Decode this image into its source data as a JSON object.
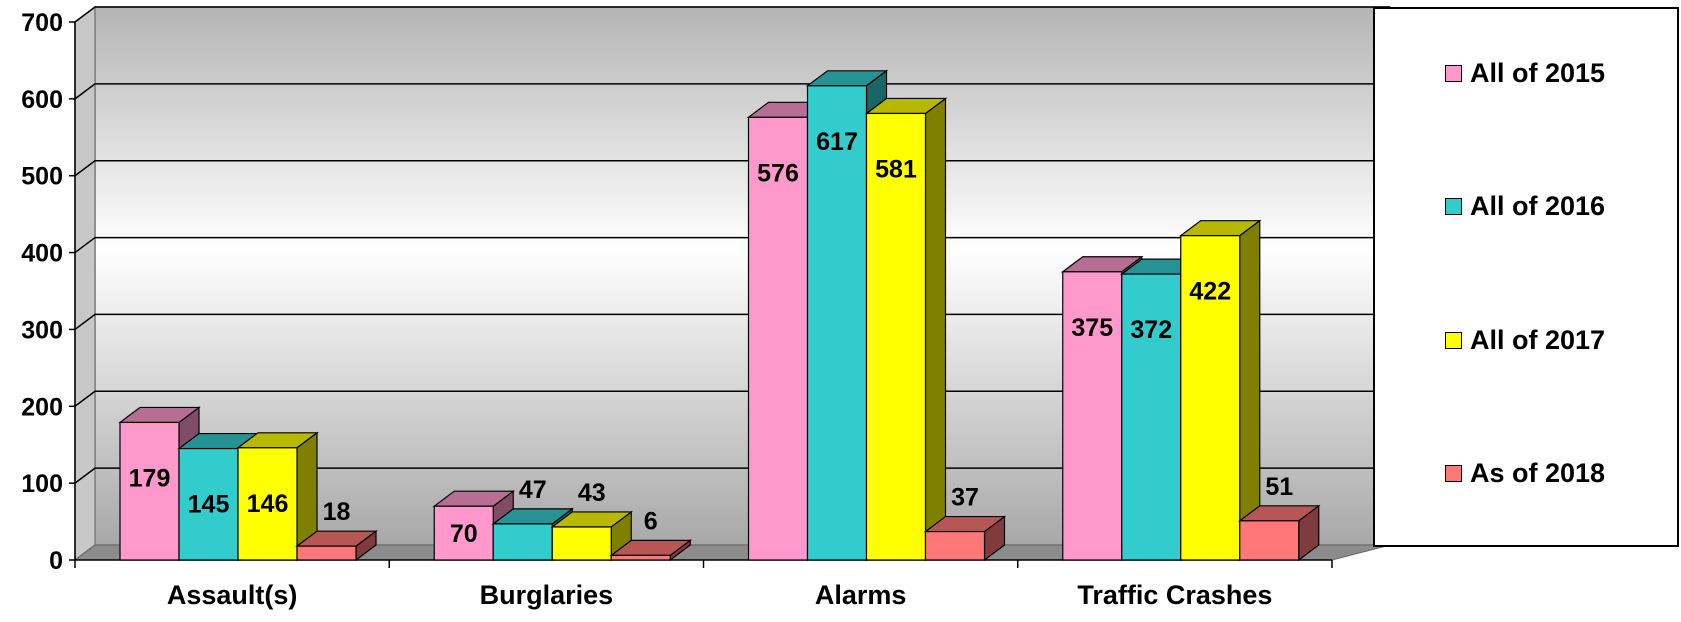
{
  "chart_data": {
    "type": "bar",
    "title": "",
    "xlabel": "",
    "ylabel": "",
    "ylim": [
      0,
      700
    ],
    "y_ticks": [
      "0",
      "100",
      "200",
      "300",
      "400",
      "500",
      "600",
      "700"
    ],
    "categories": [
      "Assault(s)",
      "Burglaries",
      "Alarms",
      "Traffic Crashes"
    ],
    "series": [
      {
        "name": "All of 2015",
        "color": "#ff99cc",
        "values": [
          179,
          70,
          576,
          375
        ]
      },
      {
        "name": "All of 2016",
        "color": "#33cccc",
        "values": [
          145,
          47,
          617,
          372
        ]
      },
      {
        "name": "All of 2017",
        "color": "#ffff00",
        "values": [
          146,
          43,
          581,
          422
        ]
      },
      {
        "name": "As of 2018",
        "color": "#ff7777",
        "values": [
          18,
          6,
          37,
          51
        ]
      }
    ],
    "grid": true,
    "legend_position": "right",
    "style": "3d-column"
  }
}
